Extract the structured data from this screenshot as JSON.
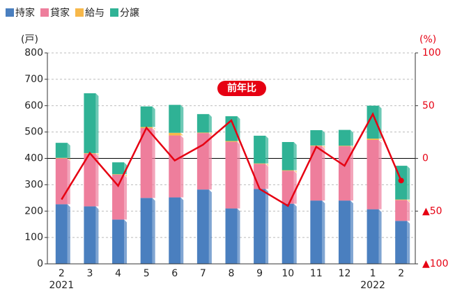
{
  "chart_data": {
    "type": "bar",
    "stacked": true,
    "categories": [
      "2",
      "3",
      "4",
      "5",
      "6",
      "7",
      "8",
      "9",
      "10",
      "11",
      "12",
      "1",
      "2"
    ],
    "year_labels": [
      "2021",
      null,
      null,
      null,
      null,
      null,
      null,
      null,
      null,
      null,
      null,
      "2022",
      null
    ],
    "series": [
      {
        "name": "持家",
        "color": "#4a7fbf",
        "values": [
          226,
          218,
          168,
          250,
          252,
          282,
          210,
          284,
          228,
          240,
          240,
          207,
          163
        ]
      },
      {
        "name": "貸家",
        "color": "#ee7e9c",
        "values": [
          174,
          200,
          170,
          265,
          235,
          214,
          253,
          95,
          125,
          207,
          206,
          263,
          79
        ]
      },
      {
        "name": "給与",
        "color": "#f7b84a",
        "values": [
          2,
          2,
          2,
          4,
          10,
          2,
          3,
          2,
          2,
          2,
          2,
          5,
          2
        ]
      },
      {
        "name": "分譲",
        "color": "#2fb295",
        "values": [
          57,
          227,
          45,
          78,
          106,
          70,
          94,
          105,
          107,
          58,
          60,
          125,
          128
        ]
      }
    ],
    "line": {
      "name": "前年比",
      "color": "#e60012",
      "axis": "y2",
      "values": [
        -39,
        5,
        -26,
        29,
        -2,
        13,
        36,
        -29,
        -45,
        11,
        -7,
        42,
        -21
      ]
    },
    "ylabel": "(戸)",
    "y2label": "(%)",
    "ylim": [
      0,
      800
    ],
    "yticks": [
      0,
      100,
      200,
      300,
      400,
      500,
      600,
      700,
      800
    ],
    "y2lim": [
      -100,
      100
    ],
    "y2ticks": [
      {
        "value": -100,
        "label": "▲100"
      },
      {
        "value": -50,
        "label": "▲50"
      },
      0,
      50,
      100
    ],
    "grid": true,
    "legend": "top-left"
  }
}
